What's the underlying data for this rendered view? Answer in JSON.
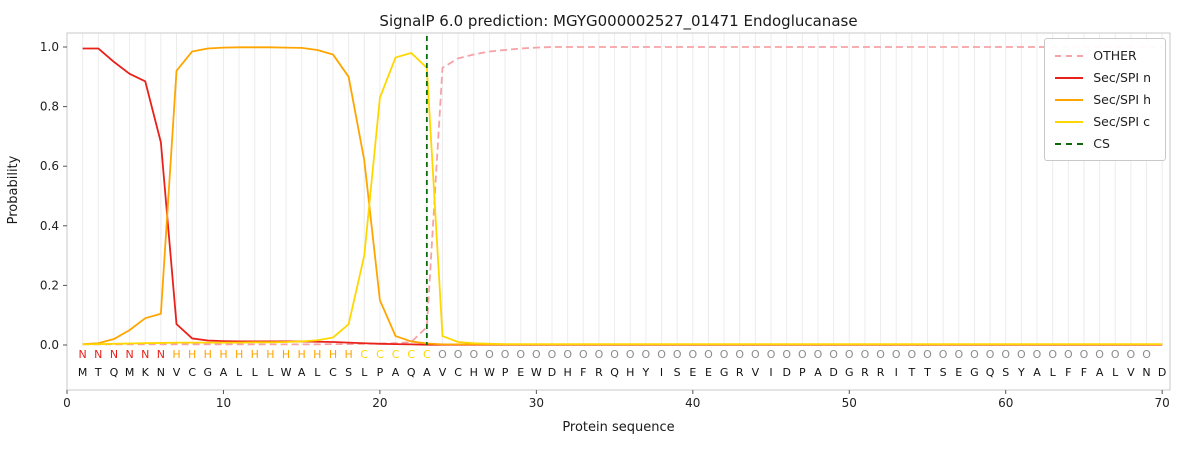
{
  "chart_data": {
    "type": "line",
    "title": "SignalP 6.0 prediction: MGYG000002527_01471 Endoglucanase",
    "xlabel": "Protein sequence",
    "ylabel": "Probability",
    "xlim": [
      0,
      70.5
    ],
    "ylim": [
      -0.15,
      1.05
    ],
    "grid": "vertical-per-residue",
    "legend_position": "upper-right",
    "x_ticks": [
      0,
      10,
      20,
      30,
      40,
      50,
      60,
      70
    ],
    "y_ticks": [
      0.0,
      0.2,
      0.4,
      0.6,
      0.8,
      1.0
    ],
    "sequence": "MTQMKNVCGALLLWALCSLPAQAVCHWPEWDHFRQHYISEEGRVIDPADGRRITTSEGQSYALFFALVND",
    "region_labels": "NNNNNNHHHHHHHHHHHHCCCCCOOOOOOOOOOOOOOOOOOOOOOOOOOOOOOOOOOOOOOOOOOOOOO",
    "region_colors": {
      "N": "#e8211b",
      "H": "#ffa500",
      "C": "#ffd700",
      "O": "#8c8c8c"
    },
    "series": [
      {
        "name": "OTHER",
        "color": "#f5a3a6",
        "dash": true,
        "values": [
          0.002,
          0.002,
          0.002,
          0.002,
          0.002,
          0.002,
          0.002,
          0.002,
          0.002,
          0.002,
          0.002,
          0.002,
          0.002,
          0.002,
          0.002,
          0.002,
          0.003,
          0.003,
          0.004,
          0.005,
          0.006,
          0.01,
          0.06,
          0.93,
          0.962,
          0.975,
          0.985,
          0.99,
          0.995,
          0.998,
          1.0,
          1.0,
          1.0,
          1.0,
          1.0,
          1.0,
          1.0,
          1.0,
          1.0,
          1.0,
          1.0,
          1.0,
          1.0,
          1.0,
          1.0,
          1.0,
          1.0,
          1.0,
          1.0,
          1.0,
          1.0,
          1.0,
          1.0,
          1.0,
          1.0,
          1.0,
          1.0,
          1.0,
          1.0,
          1.0,
          1.0,
          1.0,
          1.0,
          1.0,
          1.0,
          1.0,
          1.0,
          1.0,
          1.0,
          1.0
        ]
      },
      {
        "name": "Sec/SPI n",
        "color": "#e8211b",
        "dash": false,
        "values": [
          0.995,
          0.995,
          0.95,
          0.91,
          0.885,
          0.68,
          0.07,
          0.022,
          0.015,
          0.013,
          0.012,
          0.012,
          0.012,
          0.012,
          0.012,
          0.011,
          0.01,
          0.008,
          0.006,
          0.004,
          0.003,
          0.002,
          0.001,
          0.001,
          0.001,
          0.001,
          0.001,
          0.001,
          0.001,
          0.001,
          0.001,
          0.001,
          0.001,
          0.001,
          0.001,
          0.001,
          0.001,
          0.001,
          0.001,
          0.001,
          0.001,
          0.001,
          0.001,
          0.001,
          0.001,
          0.001,
          0.001,
          0.001,
          0.001,
          0.001,
          0.001,
          0.001,
          0.001,
          0.001,
          0.001,
          0.001,
          0.001,
          0.001,
          0.001,
          0.001,
          0.001,
          0.001,
          0.001,
          0.001,
          0.001,
          0.001,
          0.001,
          0.001,
          0.001,
          0.001
        ]
      },
      {
        "name": "Sec/SPI h",
        "color": "#ffa500",
        "dash": false,
        "values": [
          0.003,
          0.006,
          0.02,
          0.05,
          0.09,
          0.105,
          0.92,
          0.985,
          0.995,
          0.998,
          0.999,
          0.999,
          0.999,
          0.998,
          0.997,
          0.99,
          0.975,
          0.9,
          0.62,
          0.15,
          0.03,
          0.012,
          0.005,
          0.002,
          0.002,
          0.002,
          0.002,
          0.002,
          0.002,
          0.002,
          0.002,
          0.002,
          0.002,
          0.002,
          0.002,
          0.002,
          0.002,
          0.002,
          0.002,
          0.002,
          0.002,
          0.002,
          0.002,
          0.002,
          0.002,
          0.002,
          0.002,
          0.002,
          0.002,
          0.002,
          0.002,
          0.002,
          0.002,
          0.002,
          0.002,
          0.002,
          0.002,
          0.002,
          0.002,
          0.002,
          0.002,
          0.002,
          0.002,
          0.002,
          0.002,
          0.002,
          0.002,
          0.002,
          0.002,
          0.002
        ]
      },
      {
        "name": "Sec/SPI c",
        "color": "#ffd700",
        "dash": false,
        "values": [
          0.002,
          0.003,
          0.004,
          0.005,
          0.006,
          0.007,
          0.008,
          0.008,
          0.008,
          0.008,
          0.008,
          0.009,
          0.009,
          0.01,
          0.012,
          0.016,
          0.025,
          0.07,
          0.3,
          0.83,
          0.965,
          0.98,
          0.93,
          0.03,
          0.01,
          0.006,
          0.004,
          0.003,
          0.003,
          0.003,
          0.003,
          0.003,
          0.003,
          0.003,
          0.003,
          0.003,
          0.003,
          0.003,
          0.003,
          0.003,
          0.003,
          0.003,
          0.003,
          0.003,
          0.003,
          0.003,
          0.003,
          0.003,
          0.003,
          0.003,
          0.003,
          0.003,
          0.003,
          0.003,
          0.003,
          0.003,
          0.003,
          0.003,
          0.003,
          0.003,
          0.003,
          0.003,
          0.003,
          0.003,
          0.003,
          0.003,
          0.003,
          0.003,
          0.003,
          0.003
        ]
      }
    ],
    "cs_line": {
      "name": "CS",
      "x": 23,
      "color": "#0b6b0b",
      "dash": true
    },
    "legend_entries": [
      {
        "label": "OTHER",
        "color": "#f5a3a6",
        "dash": true
      },
      {
        "label": "Sec/SPI n",
        "color": "#e8211b",
        "dash": false
      },
      {
        "label": "Sec/SPI h",
        "color": "#ffa500",
        "dash": false
      },
      {
        "label": "Sec/SPI c",
        "color": "#ffd700",
        "dash": false
      },
      {
        "label": "CS",
        "color": "#0b6b0b",
        "dash": true
      }
    ]
  }
}
